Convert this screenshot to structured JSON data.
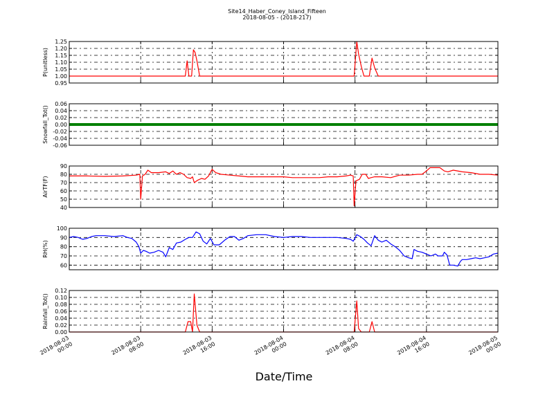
{
  "figure": {
    "title_line1": "Site14_Haber_Coney_Island_Fifteen",
    "title_line2": "2018-08-05 - (2018-217)",
    "xlabel": "Date/Time"
  },
  "x_axis": {
    "range_hours": [
      0,
      48
    ],
    "ticks": [
      {
        "hours": 0,
        "line1": "2018-08-03",
        "line2": "00:00"
      },
      {
        "hours": 8,
        "line1": "2018-08-03",
        "line2": "08:00"
      },
      {
        "hours": 16,
        "line1": "2018-08-03",
        "line2": "16:00"
      },
      {
        "hours": 24,
        "line1": "2018-08-04",
        "line2": "00:00"
      },
      {
        "hours": 32,
        "line1": "2018-08-04",
        "line2": "08:00"
      },
      {
        "hours": 40,
        "line1": "2018-08-04",
        "line2": "16:00"
      },
      {
        "hours": 48,
        "line1": "2018-08-05",
        "line2": "00:00"
      }
    ]
  },
  "chart_data": [
    {
      "type": "line",
      "ylabel": "P(unitless)",
      "ylim": [
        0.95,
        1.25
      ],
      "yticks": [
        "0.95",
        "1.00",
        "1.05",
        "1.10",
        "1.15",
        "1.20",
        "1.25"
      ],
      "grid": true,
      "color": "#ff0000",
      "points": [
        [
          0,
          1.0
        ],
        [
          13.0,
          1.0
        ],
        [
          13.2,
          1.11
        ],
        [
          13.4,
          1.0
        ],
        [
          13.7,
          1.0
        ],
        [
          13.9,
          1.19
        ],
        [
          14.1,
          1.17
        ],
        [
          14.3,
          1.11
        ],
        [
          14.6,
          1.0
        ],
        [
          31.9,
          1.0
        ],
        [
          32.2,
          1.25
        ],
        [
          32.4,
          1.16
        ],
        [
          32.7,
          1.07
        ],
        [
          33.0,
          1.0
        ],
        [
          33.6,
          1.0
        ],
        [
          33.9,
          1.13
        ],
        [
          34.2,
          1.06
        ],
        [
          34.6,
          1.0
        ],
        [
          48,
          1.0
        ]
      ]
    },
    {
      "type": "line",
      "ylabel": "Snowfall_Tot()",
      "ylim": [
        -0.06,
        0.06
      ],
      "yticks": [
        "-0.06",
        "-0.04",
        "-0.02",
        "0.00",
        "0.02",
        "0.04",
        "0.06"
      ],
      "grid": true,
      "color": "#008000",
      "points": [
        [
          0,
          0.0
        ],
        [
          48,
          0.0
        ]
      ]
    },
    {
      "type": "line",
      "ylabel": "AirTF(F)",
      "ylim": [
        40,
        90
      ],
      "yticks": [
        "40",
        "50",
        "60",
        "70",
        "80",
        "90"
      ],
      "grid": true,
      "color": "#ff0000",
      "points": [
        [
          0,
          78
        ],
        [
          2,
          78
        ],
        [
          4,
          77.5
        ],
        [
          6,
          78
        ],
        [
          7.5,
          79
        ],
        [
          7.9,
          80
        ],
        [
          8.0,
          50
        ],
        [
          8.2,
          78
        ],
        [
          8.5,
          80
        ],
        [
          8.8,
          85
        ],
        [
          9.2,
          82
        ],
        [
          10,
          82
        ],
        [
          10.8,
          83
        ],
        [
          11.2,
          81
        ],
        [
          11.6,
          84
        ],
        [
          12,
          80
        ],
        [
          12.4,
          82
        ],
        [
          12.8,
          80
        ],
        [
          13.2,
          76
        ],
        [
          13.6,
          75
        ],
        [
          13.8,
          77
        ],
        [
          14.0,
          70
        ],
        [
          14.4,
          73
        ],
        [
          14.8,
          75
        ],
        [
          15.2,
          74
        ],
        [
          15.6,
          78
        ],
        [
          16.0,
          86
        ],
        [
          16.4,
          82
        ],
        [
          17.0,
          80
        ],
        [
          18,
          79
        ],
        [
          19,
          78
        ],
        [
          20,
          77
        ],
        [
          21,
          77
        ],
        [
          22,
          77
        ],
        [
          23,
          77
        ],
        [
          24,
          77
        ],
        [
          25,
          76
        ],
        [
          26,
          76
        ],
        [
          27,
          76
        ],
        [
          28,
          76
        ],
        [
          29,
          77
        ],
        [
          30,
          77
        ],
        [
          31,
          78
        ],
        [
          31.5,
          79
        ],
        [
          31.8,
          78
        ],
        [
          31.9,
          42
        ],
        [
          32.1,
          72
        ],
        [
          32.5,
          74
        ],
        [
          32.8,
          80
        ],
        [
          33.2,
          80
        ],
        [
          33.5,
          75
        ],
        [
          33.8,
          76
        ],
        [
          34.2,
          77
        ],
        [
          35,
          77
        ],
        [
          36,
          76
        ],
        [
          37,
          79
        ],
        [
          38,
          79
        ],
        [
          39,
          80
        ],
        [
          39.5,
          80
        ],
        [
          40,
          84
        ],
        [
          40.4,
          88
        ],
        [
          41.5,
          88
        ],
        [
          42,
          84
        ],
        [
          42.4,
          83
        ],
        [
          43,
          85
        ],
        [
          44,
          83
        ],
        [
          45,
          82
        ],
        [
          46,
          80
        ],
        [
          47,
          80
        ],
        [
          48,
          79
        ]
      ]
    },
    {
      "type": "line",
      "ylabel": "RH(%)",
      "ylim": [
        55,
        100
      ],
      "yticks": [
        "60",
        "70",
        "80",
        "90",
        "100"
      ],
      "grid": true,
      "color": "#0000ff",
      "points": [
        [
          0,
          90
        ],
        [
          0.5,
          91
        ],
        [
          1,
          90
        ],
        [
          1.5,
          88
        ],
        [
          2,
          89
        ],
        [
          2.5,
          91
        ],
        [
          3,
          92
        ],
        [
          4,
          92
        ],
        [
          5,
          91
        ],
        [
          6,
          92
        ],
        [
          6.5,
          90
        ],
        [
          7,
          89
        ],
        [
          7.5,
          85
        ],
        [
          7.8,
          80
        ],
        [
          8.0,
          73
        ],
        [
          8.3,
          76
        ],
        [
          8.6,
          75
        ],
        [
          9,
          73
        ],
        [
          9.5,
          74
        ],
        [
          10,
          76
        ],
        [
          10.5,
          74
        ],
        [
          10.8,
          69
        ],
        [
          11.2,
          79
        ],
        [
          11.6,
          77
        ],
        [
          12,
          84
        ],
        [
          12.5,
          85
        ],
        [
          13,
          88
        ],
        [
          13.4,
          90
        ],
        [
          13.8,
          90
        ],
        [
          14.2,
          96
        ],
        [
          14.6,
          94
        ],
        [
          15,
          86
        ],
        [
          15.4,
          83
        ],
        [
          15.8,
          89
        ],
        [
          16.2,
          82
        ],
        [
          16.8,
          82
        ],
        [
          17.4,
          87
        ],
        [
          18,
          91
        ],
        [
          18.5,
          91
        ],
        [
          19,
          87
        ],
        [
          19.5,
          89
        ],
        [
          20,
          92
        ],
        [
          21,
          93
        ],
        [
          22,
          93
        ],
        [
          23,
          91
        ],
        [
          24,
          90
        ],
        [
          25,
          91
        ],
        [
          26,
          91
        ],
        [
          27,
          90
        ],
        [
          28,
          90
        ],
        [
          29,
          90
        ],
        [
          30,
          90
        ],
        [
          31,
          89
        ],
        [
          31.5,
          88
        ],
        [
          31.8,
          86
        ],
        [
          32.2,
          93
        ],
        [
          32.6,
          91
        ],
        [
          33,
          88
        ],
        [
          33.4,
          84
        ],
        [
          33.8,
          81
        ],
        [
          34.2,
          92
        ],
        [
          34.6,
          87
        ],
        [
          35,
          85
        ],
        [
          35.5,
          87
        ],
        [
          36,
          83
        ],
        [
          36.5,
          80
        ],
        [
          37,
          76
        ],
        [
          37.5,
          70
        ],
        [
          38,
          68
        ],
        [
          38.4,
          67
        ],
        [
          38.6,
          77
        ],
        [
          39,
          75
        ],
        [
          39.5,
          74
        ],
        [
          40,
          72
        ],
        [
          40.5,
          70
        ],
        [
          41,
          72
        ],
        [
          41.3,
          70
        ],
        [
          41.8,
          70
        ],
        [
          42,
          74
        ],
        [
          42.3,
          71
        ],
        [
          42.6,
          60
        ],
        [
          43,
          60
        ],
        [
          43.5,
          59
        ],
        [
          43.8,
          64
        ],
        [
          44,
          66
        ],
        [
          44.5,
          66
        ],
        [
          45,
          67
        ],
        [
          45.5,
          68
        ],
        [
          46,
          67
        ],
        [
          46.5,
          68
        ],
        [
          47,
          69
        ],
        [
          47.5,
          72
        ],
        [
          48,
          73
        ]
      ]
    },
    {
      "type": "line",
      "ylabel": "Rainfall_Tot()",
      "ylim": [
        0.0,
        0.12
      ],
      "yticks": [
        "0.00",
        "0.02",
        "0.04",
        "0.06",
        "0.08",
        "0.10",
        "0.12"
      ],
      "grid": true,
      "color": "#ff0000",
      "points": [
        [
          0,
          0.0
        ],
        [
          13.0,
          0.0
        ],
        [
          13.3,
          0.03
        ],
        [
          13.6,
          0.03
        ],
        [
          13.8,
          0.0
        ],
        [
          14.0,
          0.11
        ],
        [
          14.3,
          0.02
        ],
        [
          14.6,
          0.0
        ],
        [
          31.9,
          0.0
        ],
        [
          32.2,
          0.09
        ],
        [
          32.4,
          0.01
        ],
        [
          32.7,
          0.0
        ],
        [
          33.6,
          0.0
        ],
        [
          33.9,
          0.03
        ],
        [
          34.2,
          0.0
        ],
        [
          48,
          0.0
        ]
      ]
    }
  ]
}
